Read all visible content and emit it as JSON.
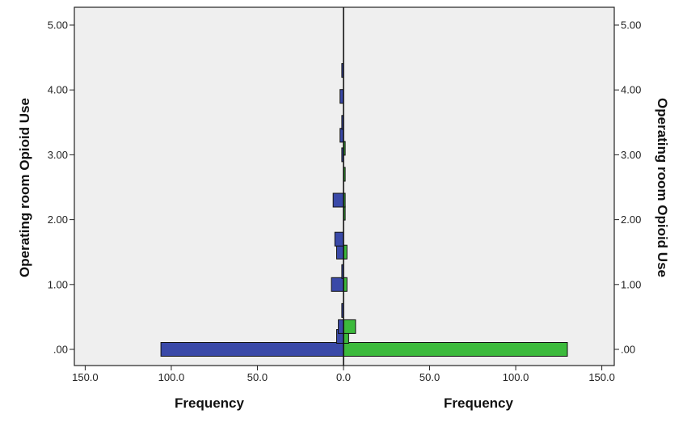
{
  "chart_data": {
    "type": "bar",
    "subtype": "population-pyramid-horizontal",
    "y_label_left": "Operating room Opioid Use",
    "y_label_right": "Operating room Opioid Use",
    "x_label_left": "Frequency",
    "x_label_right": "Frequency",
    "y_ticks": [
      ".00",
      "1.00",
      "2.00",
      "3.00",
      "4.00",
      "5.00"
    ],
    "y_tick_values": [
      0,
      1,
      2,
      3,
      4,
      5
    ],
    "x_ticks_left": [
      "150.0",
      "100.0",
      "50.0",
      "0.0"
    ],
    "x_ticks_right": [
      "50.0",
      "100.0",
      "150.0"
    ],
    "x_tick_values_left": [
      150,
      100,
      50,
      0
    ],
    "x_tick_values_right": [
      50,
      100,
      150
    ],
    "xlim": [
      0,
      150
    ],
    "ylim": [
      -0.1,
      5.15
    ],
    "bin_width": 0.2,
    "colors": {
      "left": "#3a49a8",
      "right": "#3cba3c",
      "plot_bg": "#efefef"
    },
    "series": [
      {
        "side": "left",
        "bins": [
          {
            "y": 0.0,
            "value": 106
          },
          {
            "y": 0.2,
            "value": 4
          },
          {
            "y": 0.35,
            "value": 3
          },
          {
            "y": 0.6,
            "value": 1
          },
          {
            "y": 1.0,
            "value": 7
          },
          {
            "y": 1.2,
            "value": 1
          },
          {
            "y": 1.5,
            "value": 4
          },
          {
            "y": 1.7,
            "value": 5
          },
          {
            "y": 2.3,
            "value": 6
          },
          {
            "y": 3.0,
            "value": 1
          },
          {
            "y": 3.3,
            "value": 2
          },
          {
            "y": 3.5,
            "value": 1
          },
          {
            "y": 3.9,
            "value": 2
          },
          {
            "y": 4.3,
            "value": 1
          }
        ]
      },
      {
        "side": "right",
        "bins": [
          {
            "y": 0.0,
            "value": 130
          },
          {
            "y": 0.2,
            "value": 3
          },
          {
            "y": 0.35,
            "value": 7
          },
          {
            "y": 1.0,
            "value": 2
          },
          {
            "y": 1.5,
            "value": 2
          },
          {
            "y": 2.1,
            "value": 1
          },
          {
            "y": 2.3,
            "value": 1
          },
          {
            "y": 2.7,
            "value": 1
          },
          {
            "y": 3.1,
            "value": 1
          }
        ]
      }
    ]
  }
}
